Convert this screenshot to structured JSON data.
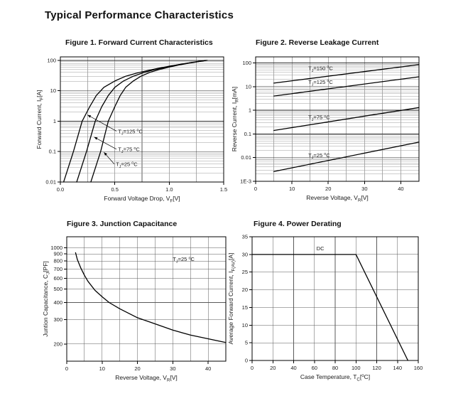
{
  "page": {
    "title": "Typical Performance Characteristics"
  },
  "chart_data": [
    {
      "figure": "Figure 1",
      "title": "Figure 1. Forward Current Characteristics",
      "type": "line",
      "legend": "none",
      "x": {
        "label_segments": [
          {
            "t": "Forward Voltage Drop, V"
          },
          {
            "t": "F",
            "s": "sub"
          },
          {
            "t": "[V]"
          }
        ],
        "min": 0,
        "max": 1.5,
        "scale": "linear",
        "grid_step": 0.25,
        "ticks": [
          0,
          0.5,
          1.0,
          1.5
        ],
        "tick_labels": [
          "0.0",
          "0.5",
          "1.0",
          "1.5"
        ]
      },
      "y": {
        "label_segments": [
          {
            "t": "Forward Current, I"
          },
          {
            "t": "F",
            "s": "sub"
          },
          {
            "t": "[A]"
          }
        ],
        "min": 0.01,
        "max": 130,
        "scale": "log",
        "grid": "log-minor",
        "ticks": [
          0.01,
          0.1,
          1,
          10,
          100
        ],
        "tick_labels": [
          "0.01",
          "0.1",
          "1",
          "10",
          "100"
        ]
      },
      "series": [
        {
          "name": "TJ=125C",
          "points": [
            [
              0.03,
              0.01
            ],
            [
              0.12,
              0.1
            ],
            [
              0.2,
              1
            ],
            [
              0.27,
              3
            ],
            [
              0.33,
              7
            ],
            [
              0.4,
              13
            ],
            [
              0.5,
              21
            ],
            [
              0.6,
              30
            ],
            [
              0.7,
              38
            ],
            [
              0.8,
              46
            ],
            [
              0.9,
              55
            ],
            [
              1.0,
              64
            ],
            [
              1.1,
              74
            ],
            [
              1.2,
              84
            ],
            [
              1.3,
              95
            ],
            [
              1.35,
              100
            ]
          ]
        },
        {
          "name": "TJ=75C",
          "points": [
            [
              0.15,
              0.01
            ],
            [
              0.24,
              0.1
            ],
            [
              0.32,
              1
            ],
            [
              0.38,
              3
            ],
            [
              0.44,
              7
            ],
            [
              0.5,
              13
            ],
            [
              0.58,
              21
            ],
            [
              0.67,
              30
            ],
            [
              0.76,
              39
            ],
            [
              0.85,
              48
            ],
            [
              0.95,
              58
            ],
            [
              1.05,
              68
            ],
            [
              1.15,
              79
            ],
            [
              1.25,
              90
            ],
            [
              1.33,
              100
            ]
          ]
        },
        {
          "name": "TJ=25C",
          "points": [
            [
              0.28,
              0.01
            ],
            [
              0.37,
              0.1
            ],
            [
              0.44,
              1
            ],
            [
              0.5,
              3
            ],
            [
              0.55,
              7
            ],
            [
              0.6,
              13
            ],
            [
              0.67,
              21
            ],
            [
              0.74,
              30
            ],
            [
              0.82,
              40
            ],
            [
              0.9,
              49
            ],
            [
              1.0,
              60
            ],
            [
              1.1,
              72
            ],
            [
              1.2,
              83
            ],
            [
              1.3,
              95
            ],
            [
              1.34,
              100
            ]
          ]
        }
      ],
      "annotations": [
        {
          "segments": [
            {
              "t": "T"
            },
            {
              "t": "J",
              "s": "sub"
            },
            {
              "t": "=125 "
            },
            {
              "t": "o",
              "s": "sup"
            },
            {
              "t": "C"
            }
          ],
          "x": 0.53,
          "y": 0.4,
          "anchor": "start",
          "arrow": {
            "from": [
              0.515,
              0.47
            ],
            "to": [
              0.25,
              1.6
            ]
          }
        },
        {
          "segments": [
            {
              "t": "T"
            },
            {
              "t": "J",
              "s": "sub"
            },
            {
              "t": "=75 "
            },
            {
              "t": "o",
              "s": "sup"
            },
            {
              "t": "C"
            }
          ],
          "x": 0.53,
          "y": 0.103,
          "anchor": "start",
          "arrow": {
            "from": [
              0.515,
              0.12
            ],
            "to": [
              0.31,
              0.3
            ]
          }
        },
        {
          "segments": [
            {
              "t": "T"
            },
            {
              "t": "J",
              "s": "sub"
            },
            {
              "t": "=25 "
            },
            {
              "t": "o",
              "s": "sup"
            },
            {
              "t": "C"
            }
          ],
          "x": 0.51,
          "y": 0.0335,
          "anchor": "start",
          "arrow": {
            "from": [
              0.495,
              0.039
            ],
            "to": [
              0.4,
              0.095
            ]
          }
        }
      ]
    },
    {
      "figure": "Figure 2",
      "title": "Figure 2. Reverse Leakage Current",
      "type": "line",
      "legend": "none",
      "x": {
        "label_segments": [
          {
            "t": "Reverse Voltage, V"
          },
          {
            "t": "R",
            "s": "sub"
          },
          {
            "t": "[V]"
          }
        ],
        "min": 0,
        "max": 45,
        "scale": "linear",
        "grid_step": 5,
        "ticks": [
          0,
          10,
          20,
          30,
          40
        ],
        "tick_labels": [
          "0",
          "10",
          "20",
          "30",
          "40"
        ]
      },
      "y": {
        "label_segments": [
          {
            "t": "Reverse Current, I"
          },
          {
            "t": "R",
            "s": "sub"
          },
          {
            "t": "[mA]"
          }
        ],
        "min": 0.001,
        "max": 180,
        "scale": "log",
        "grid": "log-minor",
        "ticks": [
          0.001,
          0.01,
          0.1,
          1,
          10,
          100
        ],
        "tick_labels": [
          "1E-3",
          "0.01",
          "0.1",
          "1",
          "10",
          "100"
        ]
      },
      "series": [
        {
          "name": "TJ=150C",
          "points": [
            [
              5,
              14
            ],
            [
              45,
              85
            ]
          ]
        },
        {
          "name": "TJ=125C",
          "points": [
            [
              5,
              4
            ],
            [
              45,
              26
            ]
          ]
        },
        {
          "name": "TJ=75C",
          "points": [
            [
              5,
              0.14
            ],
            [
              45,
              1.3
            ]
          ]
        },
        {
          "name": "TJ=25C",
          "points": [
            [
              5,
              0.0026
            ],
            [
              45,
              0.045
            ]
          ]
        }
      ],
      "annotations": [
        {
          "segments": [
            {
              "t": "T"
            },
            {
              "t": "J",
              "s": "sub"
            },
            {
              "t": "=150 "
            },
            {
              "t": "o",
              "s": "sup"
            },
            {
              "t": "C"
            }
          ],
          "x": 14.5,
          "y": 50,
          "anchor": "start"
        },
        {
          "segments": [
            {
              "t": "T"
            },
            {
              "t": "J",
              "s": "sub"
            },
            {
              "t": "=125 "
            },
            {
              "t": "o",
              "s": "sup"
            },
            {
              "t": "C"
            }
          ],
          "x": 14.5,
          "y": 13,
          "anchor": "start"
        },
        {
          "segments": [
            {
              "t": "T"
            },
            {
              "t": "J",
              "s": "sub"
            },
            {
              "t": "=75 "
            },
            {
              "t": "o",
              "s": "sup"
            },
            {
              "t": "C"
            }
          ],
          "x": 14.5,
          "y": 0.42,
          "anchor": "start"
        },
        {
          "segments": [
            {
              "t": "T"
            },
            {
              "t": "J",
              "s": "sub"
            },
            {
              "t": "=25 "
            },
            {
              "t": "o",
              "s": "sup"
            },
            {
              "t": "C"
            }
          ],
          "x": 14.5,
          "y": 0.0105,
          "anchor": "start"
        }
      ]
    },
    {
      "figure": "Figure 3",
      "title": "Figure 3. Junction Capacitance",
      "type": "line",
      "legend": "none",
      "x": {
        "label_segments": [
          {
            "t": "Reverse Voltage, V"
          },
          {
            "t": "R",
            "s": "sub"
          },
          {
            "t": "[V]"
          }
        ],
        "min": 0,
        "max": 45,
        "scale": "linear",
        "grid_step": 5,
        "ticks": [
          0,
          10,
          20,
          30,
          40
        ],
        "tick_labels": [
          "0",
          "10",
          "20",
          "30",
          "40"
        ]
      },
      "y": {
        "label_segments": [
          {
            "t": "Juntion Capacitance, C"
          },
          {
            "t": "J",
            "s": "sub"
          },
          {
            "t": "[PF]"
          }
        ],
        "min": 150,
        "max": 1200,
        "scale": "log",
        "grid": "ticks",
        "ticks": [
          200,
          300,
          400,
          500,
          600,
          700,
          800,
          900,
          1000
        ],
        "tick_labels": [
          "200",
          "300",
          "400",
          "500",
          "600",
          "700",
          "800",
          "900",
          "1000"
        ]
      },
      "series": [
        {
          "name": "CJ at TJ=25C",
          "points": [
            [
              2.5,
              920
            ],
            [
              3,
              820
            ],
            [
              4,
              710
            ],
            [
              5,
              630
            ],
            [
              6,
              570
            ],
            [
              8,
              490
            ],
            [
              10,
              440
            ],
            [
              12,
              400
            ],
            [
              15,
              360
            ],
            [
              20,
              310
            ],
            [
              25,
              280
            ],
            [
              30,
              252
            ],
            [
              35,
              232
            ],
            [
              40,
              218
            ],
            [
              45,
              205
            ]
          ]
        }
      ],
      "annotations": [
        {
          "segments": [
            {
              "t": "T"
            },
            {
              "t": "J",
              "s": "sub"
            },
            {
              "t": "=25 "
            },
            {
              "t": "o",
              "s": "sup"
            },
            {
              "t": "C"
            }
          ],
          "x": 30,
          "y": 800,
          "anchor": "start"
        }
      ]
    },
    {
      "figure": "Figure 4",
      "title": "Figure 4. Power Derating",
      "type": "line",
      "legend": "none",
      "x": {
        "label_segments": [
          {
            "t": "Case Temperature, T"
          },
          {
            "t": "C",
            "s": "sub"
          },
          {
            "t": "["
          },
          {
            "t": "o",
            "s": "sup"
          },
          {
            "t": "C]"
          }
        ],
        "min": 0,
        "max": 160,
        "scale": "linear",
        "grid_step": 20,
        "ticks": [
          0,
          20,
          40,
          60,
          80,
          100,
          120,
          140,
          160
        ],
        "tick_labels": [
          "0",
          "20",
          "40",
          "60",
          "80",
          "100",
          "120",
          "140",
          "160"
        ]
      },
      "y": {
        "label_segments": [
          {
            "t": "Average Forward Current, I"
          },
          {
            "t": "F(AV)",
            "s": "sub"
          },
          {
            "t": "[A]"
          }
        ],
        "min": 0,
        "max": 35,
        "scale": "linear",
        "grid_step": 5,
        "ticks": [
          0,
          5,
          10,
          15,
          20,
          25,
          30,
          35
        ],
        "tick_labels": [
          "0",
          "5",
          "10",
          "15",
          "20",
          "25",
          "30",
          "35"
        ]
      },
      "series": [
        {
          "name": "DC",
          "points": [
            [
              0,
              30
            ],
            [
              100,
              30
            ],
            [
              150,
              0
            ]
          ]
        }
      ],
      "annotations": [
        {
          "segments": [
            {
              "t": "DC"
            }
          ],
          "x": 62,
          "y": 31.2,
          "anchor": "start"
        }
      ]
    }
  ]
}
